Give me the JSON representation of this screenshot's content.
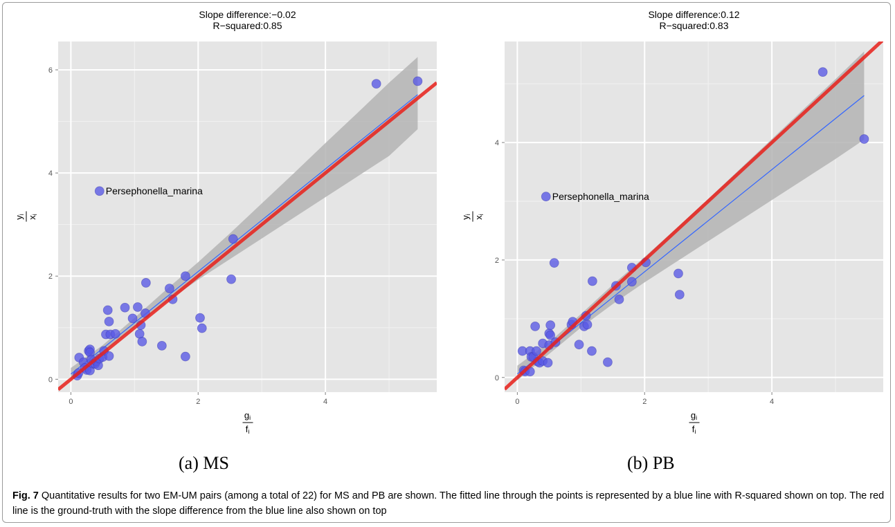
{
  "chart_data": [
    {
      "type": "scatter",
      "panel_label": "(a)  MS",
      "title_lines": [
        "Slope difference:−0.02",
        "R−squared:0.85"
      ],
      "xlabel": {
        "numerator": "g",
        "num_sub": "i",
        "denominator": "f",
        "den_sub": "i"
      },
      "ylabel": {
        "numerator": "y",
        "num_sub": "i",
        "denominator": "x",
        "den_sub": "i"
      },
      "xlim": [
        -0.2,
        5.75
      ],
      "ylim": [
        -0.25,
        6.55
      ],
      "xticks": [
        0,
        2,
        4
      ],
      "yticks": [
        0,
        2,
        4,
        6
      ],
      "grid": true,
      "annotation": {
        "text": "Persephonella_marina",
        "x": 0.45,
        "y": 3.65
      },
      "ground_truth_line": {
        "x": [
          -0.2,
          5.75
        ],
        "y": [
          -0.2,
          5.75
        ],
        "color": "#e8201a"
      },
      "fit_line": {
        "x": [
          0.0,
          5.45
        ],
        "y": [
          0.1,
          5.52
        ],
        "color": "#3366ff"
      },
      "fit_band": {
        "x": [
          0.0,
          0.5,
          1.0,
          1.5,
          2.0,
          2.5,
          3.0,
          3.5,
          4.0,
          4.5,
          5.0,
          5.45
        ],
        "lower": [
          -0.02,
          0.52,
          1.02,
          1.5,
          1.93,
          2.33,
          2.73,
          3.13,
          3.53,
          3.93,
          4.33,
          4.85
        ],
        "upper": [
          0.22,
          0.66,
          1.19,
          1.74,
          2.27,
          2.83,
          3.41,
          3.99,
          4.58,
          5.16,
          5.75,
          6.25
        ]
      },
      "points": [
        [
          0.1,
          0.07
        ],
        [
          0.12,
          0.12
        ],
        [
          0.13,
          0.42
        ],
        [
          0.2,
          0.33
        ],
        [
          0.22,
          0.22
        ],
        [
          0.25,
          0.18
        ],
        [
          0.28,
          0.55
        ],
        [
          0.3,
          0.58
        ],
        [
          0.3,
          0.52
        ],
        [
          0.32,
          0.38
        ],
        [
          0.3,
          0.17
        ],
        [
          0.35,
          0.3
        ],
        [
          0.38,
          0.3
        ],
        [
          0.4,
          0.35
        ],
        [
          0.43,
          0.27
        ],
        [
          0.45,
          0.4
        ],
        [
          0.5,
          0.43
        ],
        [
          0.52,
          0.55
        ],
        [
          0.55,
          0.87
        ],
        [
          0.6,
          0.45
        ],
        [
          0.58,
          1.34
        ],
        [
          0.6,
          1.12
        ],
        [
          0.62,
          0.87
        ],
        [
          0.7,
          0.88
        ],
        [
          0.85,
          1.39
        ],
        [
          0.97,
          1.18
        ],
        [
          1.05,
          1.4
        ],
        [
          1.08,
          0.88
        ],
        [
          1.1,
          1.05
        ],
        [
          1.12,
          0.73
        ],
        [
          1.17,
          1.28
        ],
        [
          1.18,
          1.87
        ],
        [
          1.43,
          0.65
        ],
        [
          1.55,
          1.76
        ],
        [
          1.6,
          1.55
        ],
        [
          1.8,
          2.0
        ],
        [
          1.8,
          0.44
        ],
        [
          2.03,
          1.19
        ],
        [
          2.06,
          0.99
        ],
        [
          2.52,
          1.94
        ],
        [
          2.55,
          2.72
        ],
        [
          4.8,
          5.73
        ],
        [
          5.45,
          5.78
        ],
        [
          0.45,
          3.65
        ]
      ]
    },
    {
      "type": "scatter",
      "panel_label": "(b)  PB",
      "title_lines": [
        "Slope difference:0.12",
        "R−squared:0.83"
      ],
      "xlabel": {
        "numerator": "g",
        "num_sub": "i",
        "denominator": "f",
        "den_sub": "i"
      },
      "ylabel": {
        "numerator": "y",
        "num_sub": "i",
        "denominator": "x",
        "den_sub": "i"
      },
      "xlim": [
        -0.2,
        5.75
      ],
      "ylim": [
        -0.25,
        5.72
      ],
      "xticks": [
        0,
        2,
        4
      ],
      "yticks": [
        0,
        2,
        4
      ],
      "grid": true,
      "annotation": {
        "text": "Persephonella_marina",
        "x": 0.45,
        "y": 3.08
      },
      "ground_truth_line": {
        "x": [
          -0.2,
          5.75
        ],
        "y": [
          -0.2,
          5.75
        ],
        "color": "#e8201a"
      },
      "fit_line": {
        "x": [
          0.0,
          5.45
        ],
        "y": [
          0.06,
          4.8
        ],
        "color": "#3366ff"
      },
      "fit_band": {
        "x": [
          0.0,
          0.5,
          1.0,
          1.5,
          2.0,
          2.5,
          3.0,
          3.5,
          4.0,
          4.5,
          5.0,
          5.45
        ],
        "lower": [
          -0.05,
          0.4,
          0.85,
          1.25,
          1.62,
          1.97,
          2.32,
          2.67,
          3.02,
          3.37,
          3.72,
          4.05
        ],
        "upper": [
          0.2,
          0.6,
          1.08,
          1.58,
          2.05,
          2.54,
          3.04,
          3.55,
          4.06,
          4.57,
          5.08,
          5.55
        ]
      },
      "points": [
        [
          0.08,
          0.45
        ],
        [
          0.1,
          0.12
        ],
        [
          0.12,
          0.1
        ],
        [
          0.2,
          0.1
        ],
        [
          0.2,
          0.45
        ],
        [
          0.22,
          0.35
        ],
        [
          0.25,
          0.35
        ],
        [
          0.28,
          0.87
        ],
        [
          0.3,
          0.45
        ],
        [
          0.32,
          0.27
        ],
        [
          0.35,
          0.25
        ],
        [
          0.4,
          0.28
        ],
        [
          0.4,
          0.58
        ],
        [
          0.48,
          0.25
        ],
        [
          0.5,
          0.55
        ],
        [
          0.5,
          0.75
        ],
        [
          0.52,
          0.72
        ],
        [
          0.52,
          0.89
        ],
        [
          0.58,
          1.95
        ],
        [
          0.6,
          0.6
        ],
        [
          0.85,
          0.9
        ],
        [
          0.87,
          0.95
        ],
        [
          0.97,
          0.56
        ],
        [
          1.05,
          0.87
        ],
        [
          1.08,
          1.05
        ],
        [
          1.1,
          0.9
        ],
        [
          1.17,
          0.45
        ],
        [
          1.18,
          1.64
        ],
        [
          1.42,
          0.26
        ],
        [
          1.55,
          1.56
        ],
        [
          1.6,
          1.33
        ],
        [
          1.8,
          1.87
        ],
        [
          1.8,
          1.63
        ],
        [
          2.02,
          1.96
        ],
        [
          2.53,
          1.77
        ],
        [
          2.55,
          1.41
        ],
        [
          4.8,
          5.2
        ],
        [
          5.45,
          4.06
        ],
        [
          0.45,
          3.08
        ]
      ]
    }
  ],
  "subcaptions": [
    "(a)  MS",
    "(b)  PB"
  ],
  "caption": {
    "label": "Fig. 7",
    "text": "Quantitative results for two EM-UM pairs (among a total of 22) for MS and PB are shown. The fitted line through the points is represented by a blue line with R-squared shown on top. The red line is the ground-truth with the slope difference from the blue line also shown on top"
  },
  "colors": {
    "panel_bg": "#e5e5e5",
    "grid": "#ffffff",
    "point_fill": "#5858e6",
    "point_stroke": "#3a3ab0",
    "band": "#b4b4b4"
  }
}
